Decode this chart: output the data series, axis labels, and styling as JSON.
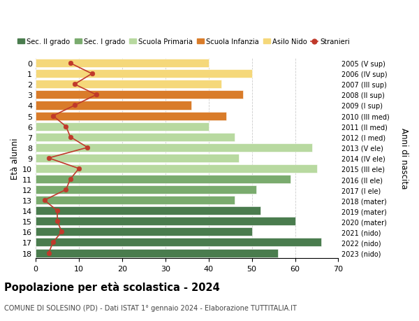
{
  "ages": [
    0,
    1,
    2,
    3,
    4,
    5,
    6,
    7,
    8,
    9,
    10,
    11,
    12,
    13,
    14,
    15,
    16,
    17,
    18
  ],
  "years": [
    "2023 (nido)",
    "2022 (nido)",
    "2021 (nido)",
    "2020 (mater)",
    "2019 (mater)",
    "2018 (mater)",
    "2017 (I ele)",
    "2016 (II ele)",
    "2015 (III ele)",
    "2014 (IV ele)",
    "2013 (V ele)",
    "2012 (I med)",
    "2011 (II med)",
    "2010 (III med)",
    "2009 (I sup)",
    "2008 (II sup)",
    "2007 (III sup)",
    "2006 (IV sup)",
    "2005 (V sup)"
  ],
  "bar_values": [
    40,
    50,
    43,
    48,
    36,
    44,
    40,
    46,
    64,
    47,
    65,
    59,
    51,
    46,
    52,
    60,
    50,
    66,
    56
  ],
  "bar_colors": [
    "#f5d87a",
    "#f5d87a",
    "#f5d87a",
    "#d97c2a",
    "#d97c2a",
    "#d97c2a",
    "#b8d9a0",
    "#b8d9a0",
    "#b8d9a0",
    "#b8d9a0",
    "#b8d9a0",
    "#7aab6e",
    "#7aab6e",
    "#7aab6e",
    "#4a7c4e",
    "#4a7c4e",
    "#4a7c4e",
    "#4a7c4e",
    "#4a7c4e"
  ],
  "stranieri_values": [
    8,
    13,
    9,
    14,
    9,
    4,
    7,
    8,
    12,
    3,
    10,
    8,
    7,
    2,
    5,
    5,
    6,
    4,
    3
  ],
  "title": "Popolazione per età scolastica - 2024",
  "subtitle": "COMUNE DI SOLESINO (PD) - Dati ISTAT 1° gennaio 2024 - Elaborazione TUTTITALIA.IT",
  "ylabel_left": "Età alunni",
  "ylabel_right": "Anni di nascita",
  "xlim": [
    0,
    70
  ],
  "xticks": [
    0,
    10,
    20,
    30,
    40,
    50,
    60,
    70
  ],
  "legend_labels": [
    "Sec. II grado",
    "Sec. I grado",
    "Scuola Primaria",
    "Scuola Infanzia",
    "Asilo Nido",
    "Stranieri"
  ],
  "legend_colors": [
    "#4a7c4e",
    "#7aab6e",
    "#b8d9a0",
    "#d97c2a",
    "#f5d87a",
    "#c0392b"
  ],
  "stranieri_color": "#c0392b",
  "background_color": "#ffffff",
  "grid_color": "#cccccc"
}
